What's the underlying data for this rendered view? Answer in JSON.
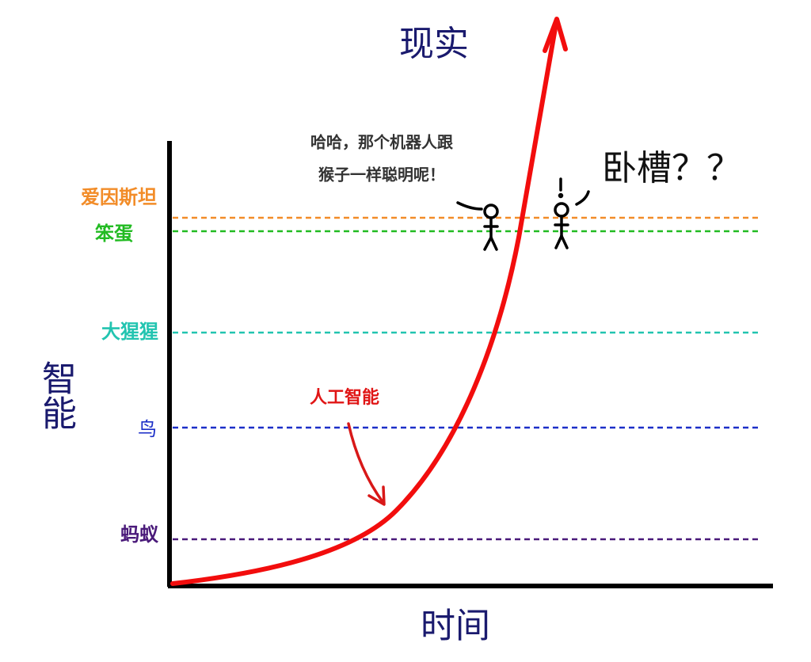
{
  "title": "现实",
  "speech": {
    "lines": [
      "哈哈，那个机器人跟",
      "猴子一样聪明呢！"
    ]
  },
  "exclamation": "卧槽？？",
  "axes": {
    "y_label": "智能",
    "x_label": "时间"
  },
  "levels": [
    "爱因斯坦",
    "笨蛋",
    "大猩猩",
    "鸟",
    "蚂蚁"
  ],
  "curve_label": "人工智能"
}
